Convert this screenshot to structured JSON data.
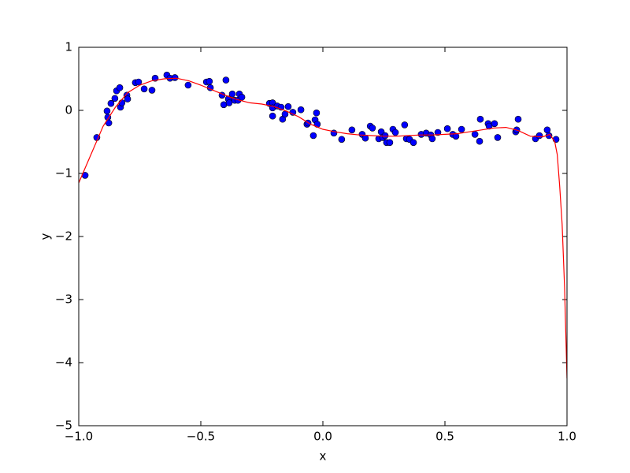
{
  "chart_data": {
    "type": "scatter",
    "xlabel": "x",
    "ylabel": "y",
    "xlim": [
      -1,
      1
    ],
    "ylim": [
      -5,
      1
    ],
    "xticks": [
      {
        "value": -1,
        "label": "−1.0"
      },
      {
        "value": -0.5,
        "label": "−0.5"
      },
      {
        "value": 0,
        "label": "0.0"
      },
      0.5,
      {
        "value": 1,
        "label": "1.0"
      }
    ],
    "yticks": [
      {
        "value": -5,
        "label": "−5"
      },
      {
        "value": -4,
        "label": "−4"
      },
      {
        "value": -3,
        "label": "−3"
      },
      {
        "value": -2,
        "label": "−2"
      },
      {
        "value": -1,
        "label": "−1"
      },
      0,
      1
    ],
    "grid": false,
    "series": [
      {
        "type": "scatter",
        "color": "#0000ff",
        "x": [
          -0.974,
          -0.926,
          -0.884,
          -0.881,
          -0.877,
          -0.868,
          -0.852,
          -0.845,
          -0.832,
          -0.829,
          -0.823,
          -0.803,
          -0.8,
          -0.768,
          -0.755,
          -0.732,
          -0.7,
          -0.687,
          -0.639,
          -0.626,
          -0.606,
          -0.552,
          -0.477,
          -0.465,
          -0.461,
          -0.413,
          -0.406,
          -0.397,
          -0.387,
          -0.384,
          -0.371,
          -0.361,
          -0.348,
          -0.342,
          -0.332,
          -0.219,
          -0.206,
          -0.206,
          -0.206,
          -0.187,
          -0.171,
          -0.165,
          -0.155,
          -0.142,
          -0.123,
          -0.09,
          -0.065,
          -0.061,
          -0.039,
          -0.032,
          -0.026,
          -0.023,
          0.045,
          0.077,
          0.119,
          0.161,
          0.174,
          0.194,
          0.203,
          0.229,
          0.239,
          0.245,
          0.255,
          0.261,
          0.274,
          0.287,
          0.297,
          0.335,
          0.342,
          0.355,
          0.371,
          0.403,
          0.423,
          0.442,
          0.448,
          0.471,
          0.51,
          0.532,
          0.545,
          0.568,
          0.623,
          0.642,
          0.645,
          0.677,
          0.681,
          0.703,
          0.716,
          0.79,
          0.794,
          0.8,
          0.871,
          0.887,
          0.919,
          0.926,
          0.955
        ],
        "values": [
          -1.03,
          -0.43,
          -0.01,
          -0.11,
          -0.2,
          0.11,
          0.19,
          0.31,
          0.36,
          0.05,
          0.12,
          0.24,
          0.18,
          0.44,
          0.45,
          0.34,
          0.32,
          0.51,
          0.56,
          0.51,
          0.52,
          0.4,
          0.45,
          0.46,
          0.36,
          0.24,
          0.09,
          0.48,
          0.18,
          0.12,
          0.26,
          0.16,
          0.16,
          0.26,
          0.21,
          0.11,
          0.12,
          0.04,
          -0.09,
          0.07,
          0.05,
          -0.14,
          -0.06,
          0.06,
          -0.03,
          0.01,
          -0.22,
          -0.2,
          -0.4,
          -0.15,
          -0.04,
          -0.22,
          -0.36,
          -0.46,
          -0.31,
          -0.38,
          -0.44,
          -0.25,
          -0.28,
          -0.45,
          -0.34,
          -0.43,
          -0.4,
          -0.51,
          -0.51,
          -0.3,
          -0.35,
          -0.23,
          -0.45,
          -0.46,
          -0.51,
          -0.38,
          -0.36,
          -0.39,
          -0.45,
          -0.35,
          -0.29,
          -0.38,
          -0.41,
          -0.3,
          -0.38,
          -0.49,
          -0.14,
          -0.21,
          -0.25,
          -0.21,
          -0.43,
          -0.34,
          -0.31,
          -0.14,
          -0.45,
          -0.4,
          -0.31,
          -0.4,
          -0.46
        ]
      },
      {
        "type": "line",
        "color": "#ff0000",
        "x": [
          -1,
          -0.95,
          -0.9,
          -0.85,
          -0.8,
          -0.75,
          -0.7,
          -0.65,
          -0.6,
          -0.55,
          -0.5,
          -0.45,
          -0.4,
          -0.35,
          -0.3,
          -0.25,
          -0.2,
          -0.15,
          -0.1,
          -0.05,
          0,
          0.05,
          0.1,
          0.15,
          0.2,
          0.25,
          0.3,
          0.35,
          0.4,
          0.45,
          0.5,
          0.55,
          0.6,
          0.65,
          0.7,
          0.75,
          0.8,
          0.85,
          0.9,
          0.93,
          0.95,
          0.96,
          0.97,
          0.98,
          0.99,
          1
        ],
        "values": [
          -1.15,
          -0.7,
          -0.25,
          0.05,
          0.28,
          0.4,
          0.47,
          0.5,
          0.51,
          0.47,
          0.4,
          0.32,
          0.24,
          0.17,
          0.12,
          0.1,
          0.06,
          -0.01,
          -0.1,
          -0.22,
          -0.3,
          -0.34,
          -0.37,
          -0.39,
          -0.4,
          -0.41,
          -0.41,
          -0.4,
          -0.39,
          -0.39,
          -0.38,
          -0.37,
          -0.34,
          -0.31,
          -0.28,
          -0.27,
          -0.32,
          -0.41,
          -0.42,
          -0.38,
          -0.5,
          -0.7,
          -1.2,
          -1.8,
          -2.8,
          -4.25
        ]
      }
    ]
  }
}
